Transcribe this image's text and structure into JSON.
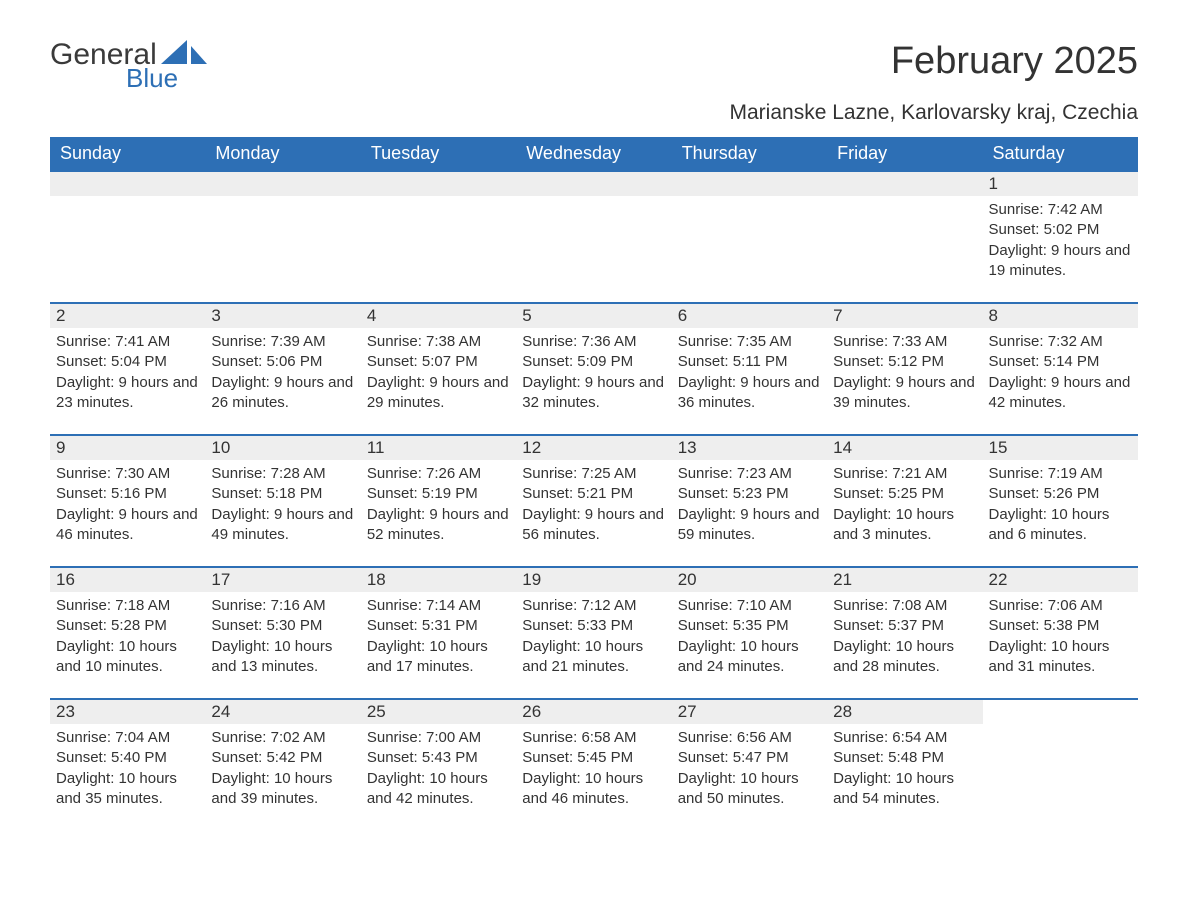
{
  "logo": {
    "main": "General",
    "sub": "Blue",
    "main_color": "#3a3a3a",
    "sub_color": "#2d6fb5",
    "sail_color": "#2d6fb5"
  },
  "title": "February 2025",
  "location": "Marianske Lazne, Karlovarsky kraj, Czechia",
  "colors": {
    "header_bg": "#2d6fb5",
    "header_text": "#ffffff",
    "band_bg": "#eeeeee",
    "row_border": "#2d6fb5",
    "text": "#333333",
    "background": "#ffffff"
  },
  "fonts": {
    "title_size": 38,
    "location_size": 21,
    "dayhead_size": 18,
    "daynum_size": 17,
    "body_size": 15
  },
  "day_headers": [
    "Sunday",
    "Monday",
    "Tuesday",
    "Wednesday",
    "Thursday",
    "Friday",
    "Saturday"
  ],
  "sunrise_label": "Sunrise: ",
  "sunset_label": "Sunset: ",
  "daylight_label": "Daylight: ",
  "weeks": [
    [
      null,
      null,
      null,
      null,
      null,
      null,
      {
        "n": "1",
        "sunrise": "7:42 AM",
        "sunset": "5:02 PM",
        "daylight": "9 hours and 19 minutes."
      }
    ],
    [
      {
        "n": "2",
        "sunrise": "7:41 AM",
        "sunset": "5:04 PM",
        "daylight": "9 hours and 23 minutes."
      },
      {
        "n": "3",
        "sunrise": "7:39 AM",
        "sunset": "5:06 PM",
        "daylight": "9 hours and 26 minutes."
      },
      {
        "n": "4",
        "sunrise": "7:38 AM",
        "sunset": "5:07 PM",
        "daylight": "9 hours and 29 minutes."
      },
      {
        "n": "5",
        "sunrise": "7:36 AM",
        "sunset": "5:09 PM",
        "daylight": "9 hours and 32 minutes."
      },
      {
        "n": "6",
        "sunrise": "7:35 AM",
        "sunset": "5:11 PM",
        "daylight": "9 hours and 36 minutes."
      },
      {
        "n": "7",
        "sunrise": "7:33 AM",
        "sunset": "5:12 PM",
        "daylight": "9 hours and 39 minutes."
      },
      {
        "n": "8",
        "sunrise": "7:32 AM",
        "sunset": "5:14 PM",
        "daylight": "9 hours and 42 minutes."
      }
    ],
    [
      {
        "n": "9",
        "sunrise": "7:30 AM",
        "sunset": "5:16 PM",
        "daylight": "9 hours and 46 minutes."
      },
      {
        "n": "10",
        "sunrise": "7:28 AM",
        "sunset": "5:18 PM",
        "daylight": "9 hours and 49 minutes."
      },
      {
        "n": "11",
        "sunrise": "7:26 AM",
        "sunset": "5:19 PM",
        "daylight": "9 hours and 52 minutes."
      },
      {
        "n": "12",
        "sunrise": "7:25 AM",
        "sunset": "5:21 PM",
        "daylight": "9 hours and 56 minutes."
      },
      {
        "n": "13",
        "sunrise": "7:23 AM",
        "sunset": "5:23 PM",
        "daylight": "9 hours and 59 minutes."
      },
      {
        "n": "14",
        "sunrise": "7:21 AM",
        "sunset": "5:25 PM",
        "daylight": "10 hours and 3 minutes."
      },
      {
        "n": "15",
        "sunrise": "7:19 AM",
        "sunset": "5:26 PM",
        "daylight": "10 hours and 6 minutes."
      }
    ],
    [
      {
        "n": "16",
        "sunrise": "7:18 AM",
        "sunset": "5:28 PM",
        "daylight": "10 hours and 10 minutes."
      },
      {
        "n": "17",
        "sunrise": "7:16 AM",
        "sunset": "5:30 PM",
        "daylight": "10 hours and 13 minutes."
      },
      {
        "n": "18",
        "sunrise": "7:14 AM",
        "sunset": "5:31 PM",
        "daylight": "10 hours and 17 minutes."
      },
      {
        "n": "19",
        "sunrise": "7:12 AM",
        "sunset": "5:33 PM",
        "daylight": "10 hours and 21 minutes."
      },
      {
        "n": "20",
        "sunrise": "7:10 AM",
        "sunset": "5:35 PM",
        "daylight": "10 hours and 24 minutes."
      },
      {
        "n": "21",
        "sunrise": "7:08 AM",
        "sunset": "5:37 PM",
        "daylight": "10 hours and 28 minutes."
      },
      {
        "n": "22",
        "sunrise": "7:06 AM",
        "sunset": "5:38 PM",
        "daylight": "10 hours and 31 minutes."
      }
    ],
    [
      {
        "n": "23",
        "sunrise": "7:04 AM",
        "sunset": "5:40 PM",
        "daylight": "10 hours and 35 minutes."
      },
      {
        "n": "24",
        "sunrise": "7:02 AM",
        "sunset": "5:42 PM",
        "daylight": "10 hours and 39 minutes."
      },
      {
        "n": "25",
        "sunrise": "7:00 AM",
        "sunset": "5:43 PM",
        "daylight": "10 hours and 42 minutes."
      },
      {
        "n": "26",
        "sunrise": "6:58 AM",
        "sunset": "5:45 PM",
        "daylight": "10 hours and 46 minutes."
      },
      {
        "n": "27",
        "sunrise": "6:56 AM",
        "sunset": "5:47 PM",
        "daylight": "10 hours and 50 minutes."
      },
      {
        "n": "28",
        "sunrise": "6:54 AM",
        "sunset": "5:48 PM",
        "daylight": "10 hours and 54 minutes."
      },
      null
    ]
  ]
}
